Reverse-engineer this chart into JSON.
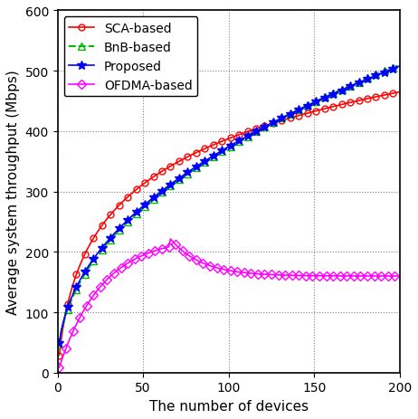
{
  "title": "",
  "xlabel": "The number of devices",
  "ylabel": "Average system throughput (Mbps)",
  "xlim": [
    0,
    200
  ],
  "ylim": [
    0,
    600
  ],
  "xticks": [
    0,
    50,
    100,
    150,
    200
  ],
  "yticks": [
    0,
    100,
    200,
    300,
    400,
    500,
    600
  ],
  "series": {
    "SCA": {
      "color": "#ff0000",
      "marker": "o",
      "marker_size": 5,
      "linestyle": "-",
      "linewidth": 1.2,
      "label": "SCA-based",
      "fillstyle": "none",
      "markevery": 5
    },
    "BnB": {
      "color": "#00bb00",
      "marker": "^",
      "marker_size": 6,
      "linestyle": "--",
      "linewidth": 1.5,
      "label": "BnB-based",
      "fillstyle": "none",
      "markevery": 5
    },
    "Proposed": {
      "color": "#0000ff",
      "marker": "*",
      "marker_size": 7,
      "linestyle": "-",
      "linewidth": 1.2,
      "label": "Proposed",
      "fillstyle": "full",
      "markevery": 5
    },
    "OFDMA": {
      "color": "#ff00ff",
      "marker": "D",
      "marker_size": 5,
      "linestyle": "-",
      "linewidth": 1.2,
      "label": "OFDMA-based",
      "fillstyle": "none",
      "markevery": 4
    }
  },
  "grid_color": "#808080",
  "grid_linestyle": ":",
  "grid_linewidth": 0.8,
  "background_color": "#ffffff",
  "legend_loc": "upper left",
  "legend_fontsize": 10,
  "axis_label_fontsize": 11,
  "tick_fontsize": 10,
  "figsize": [
    4.62,
    4.64
  ],
  "dpi": 100
}
